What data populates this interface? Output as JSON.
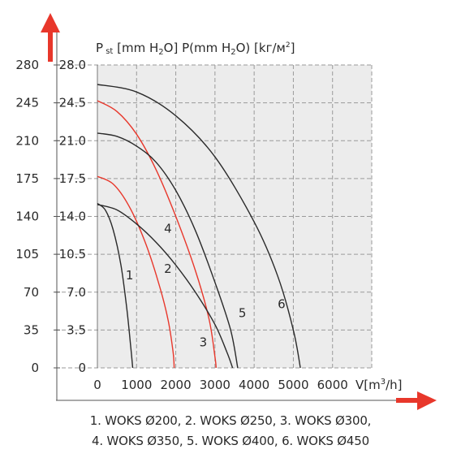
{
  "chart_data": {
    "type": "line",
    "title": "",
    "ylabel": "P st [mm H2O] P(mm H2O) [kг/м2]",
    "ylabel_parts": [
      "P",
      "st",
      "[mm H",
      "2",
      "O] P(mm H",
      "2",
      "O) [kг/м",
      "2",
      "]"
    ],
    "xlabel": "V[m3/h]",
    "xlabel_parts": [
      "V[m",
      "3",
      "/h]"
    ],
    "xlim": [
      0,
      7000
    ],
    "ylim": [
      0,
      28
    ],
    "x_ticks": [
      "0",
      "1000",
      "2000",
      "3000",
      "4000",
      "5000",
      "6000"
    ],
    "y_ticks_inner": [
      "0",
      "3.5",
      "7.0",
      "10.5",
      "14.0",
      "17.5",
      "21.0",
      "24.5",
      "28.0"
    ],
    "y_ticks_outer": [
      "0",
      "35",
      "70",
      "105",
      "140",
      "175",
      "210",
      "245",
      "280"
    ],
    "grid": true,
    "series": [
      {
        "name": "1",
        "color": "#2a2a2a",
        "points": [
          [
            0,
            15.2
          ],
          [
            200,
            14.6
          ],
          [
            400,
            12.8
          ],
          [
            600,
            9.5
          ],
          [
            750,
            5.5
          ],
          [
            850,
            2
          ],
          [
            900,
            0
          ]
        ]
      },
      {
        "name": "2",
        "color": "#e8372b",
        "points": [
          [
            0,
            17.7
          ],
          [
            400,
            17.0
          ],
          [
            800,
            15.0
          ],
          [
            1200,
            11.8
          ],
          [
            1550,
            8.0
          ],
          [
            1800,
            4.5
          ],
          [
            1930,
            1.5
          ],
          [
            1960,
            0
          ]
        ]
      },
      {
        "name": "3",
        "color": "#e8372b",
        "points": [
          [
            0,
            24.7
          ],
          [
            500,
            23.7
          ],
          [
            1000,
            21.6
          ],
          [
            1500,
            18.3
          ],
          [
            2000,
            14.0
          ],
          [
            2500,
            9.0
          ],
          [
            2850,
            4.5
          ],
          [
            3000,
            1.0
          ],
          [
            3030,
            0
          ]
        ]
      },
      {
        "name": "4",
        "color": "#2a2a2a",
        "points": [
          [
            0,
            15.1
          ],
          [
            500,
            14.6
          ],
          [
            1000,
            13.3
          ],
          [
            1500,
            11.6
          ],
          [
            2000,
            9.5
          ],
          [
            2500,
            7.0
          ],
          [
            3000,
            4.0
          ],
          [
            3300,
            1.5
          ],
          [
            3450,
            0
          ]
        ]
      },
      {
        "name": "5",
        "color": "#2a2a2a",
        "points": [
          [
            0,
            21.7
          ],
          [
            500,
            21.4
          ],
          [
            1000,
            20.5
          ],
          [
            1500,
            19.0
          ],
          [
            2000,
            16.4
          ],
          [
            2500,
            12.7
          ],
          [
            3000,
            7.9
          ],
          [
            3400,
            3.5
          ],
          [
            3580,
            0
          ]
        ]
      },
      {
        "name": "6",
        "color": "#2a2a2a",
        "points": [
          [
            0,
            26.2
          ],
          [
            1000,
            25.5
          ],
          [
            2000,
            23.3
          ],
          [
            3000,
            19.5
          ],
          [
            4000,
            13.5
          ],
          [
            4600,
            8.5
          ],
          [
            5000,
            3.5
          ],
          [
            5180,
            0
          ]
        ]
      }
    ],
    "curve_labels": [
      {
        "text": "1",
        "x": 820,
        "y": 8.2
      },
      {
        "text": "2",
        "x": 1800,
        "y": 8.8
      },
      {
        "text": "3",
        "x": 2700,
        "y": 2.0
      },
      {
        "text": "4",
        "x": 1800,
        "y": 12.5
      },
      {
        "text": "5",
        "x": 3700,
        "y": 4.7
      },
      {
        "text": "6",
        "x": 4700,
        "y": 5.5
      }
    ]
  },
  "legend": {
    "line1": "1. WOKS Ø200, 2. WOKS Ø250, 3. WOKS Ø300,",
    "line2": "4. WOKS Ø350, 5. WOKS Ø400, 6. WOKS Ø450"
  },
  "colors": {
    "accent_arrow": "#e8372b",
    "text": "#2a2a2a",
    "grid": "#9a9a9a",
    "plot_bg": "#ececec"
  }
}
